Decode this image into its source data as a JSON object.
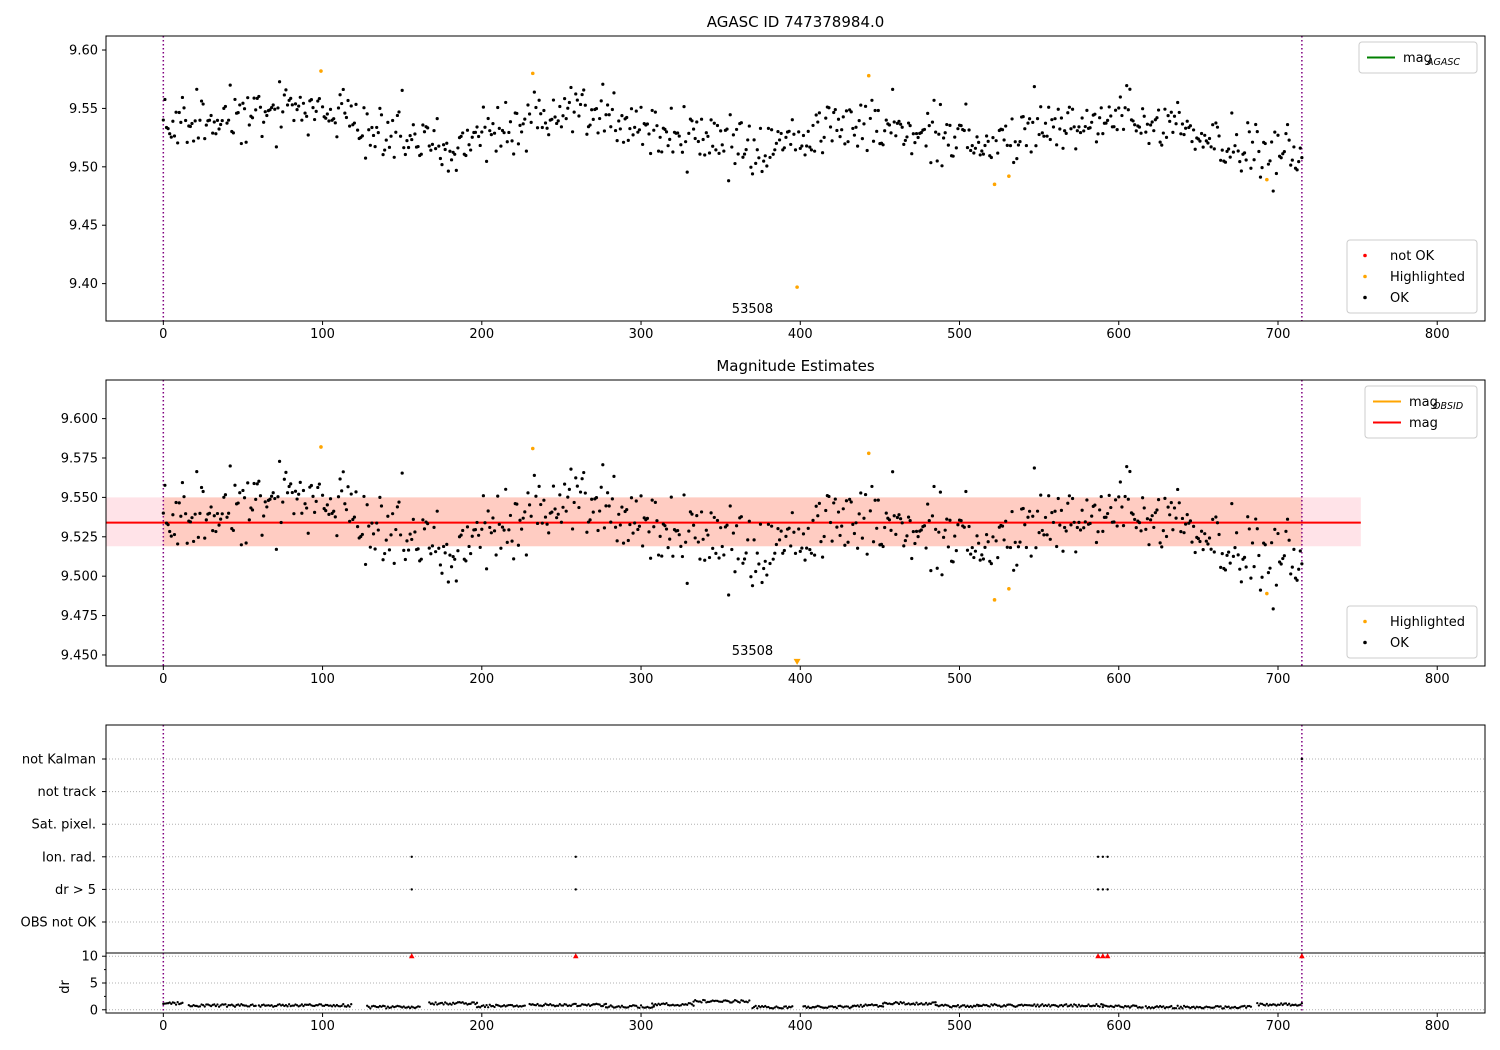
{
  "figure": {
    "background": "#ffffff"
  },
  "chart_data": [
    {
      "id": "top",
      "type": "scatter",
      "title": "AGASC ID 747378984.0",
      "xlabel": "",
      "ylabel": "",
      "xlim": [
        -36,
        830
      ],
      "ylim": [
        9.368,
        9.612
      ],
      "xticks": [
        "0",
        "100",
        "200",
        "300",
        "400",
        "500",
        "600",
        "700",
        "800"
      ],
      "xtick_values": [
        0,
        100,
        200,
        300,
        400,
        500,
        600,
        700,
        800
      ],
      "yticks": [
        "9.40",
        "9.45",
        "9.50",
        "9.55",
        "9.60"
      ],
      "ytick_values": [
        9.4,
        9.45,
        9.5,
        9.55,
        9.6
      ],
      "grid": false,
      "vlines": [
        0,
        715
      ],
      "vline_color": "#800080",
      "annotation": {
        "text": "53508",
        "x": 357,
        "y": 9.375
      },
      "legends": [
        {
          "placement": "top-right",
          "entries": [
            {
              "label": "mag",
              "sub": "AGASC",
              "kind": "line",
              "color": "#008000"
            }
          ]
        },
        {
          "placement": "bottom-right",
          "entries": [
            {
              "label": "not OK",
              "kind": "point",
              "color": "#ff0000"
            },
            {
              "label": "Highlighted",
              "kind": "point",
              "color": "#ffa500"
            },
            {
              "label": "OK",
              "kind": "point",
              "color": "#000000"
            }
          ]
        }
      ],
      "series": [
        {
          "name": "OK",
          "kind": "ok-trend",
          "color": "#000000"
        },
        {
          "name": "Highlighted",
          "color": "#ffa500",
          "points": [
            [
              99,
              9.582
            ],
            [
              232,
              9.58
            ],
            [
              443,
              9.578
            ],
            [
              398,
              9.397
            ],
            [
              522,
              9.485
            ],
            [
              531,
              9.492
            ],
            [
              693,
              9.489
            ]
          ]
        }
      ]
    },
    {
      "id": "middle",
      "type": "scatter",
      "title": "Magnitude Estimates",
      "xlabel": "",
      "ylabel": "",
      "xlim": [
        -36,
        830
      ],
      "ylim": [
        9.443,
        9.6245
      ],
      "xticks": [
        "0",
        "100",
        "200",
        "300",
        "400",
        "500",
        "600",
        "700",
        "800"
      ],
      "xtick_values": [
        0,
        100,
        200,
        300,
        400,
        500,
        600,
        700,
        800
      ],
      "yticks": [
        "9.450",
        "9.475",
        "9.500",
        "9.525",
        "9.550",
        "9.575",
        "9.600"
      ],
      "ytick_values": [
        9.45,
        9.475,
        9.5,
        9.525,
        9.55,
        9.575,
        9.6
      ],
      "grid": false,
      "vlines": [
        0,
        715
      ],
      "vline_color": "#800080",
      "annotation": {
        "text": "53508",
        "x": 357,
        "y": 9.45
      },
      "mag": 9.534,
      "band_outer": {
        "x": [
          -36,
          752
        ],
        "y": [
          9.519,
          9.55
        ],
        "color": "#ffc0cb"
      },
      "band_inner": {
        "x": [
          0,
          715
        ],
        "y": [
          9.519,
          9.55
        ],
        "color": "#ffa07a"
      },
      "legends": [
        {
          "placement": "top-right",
          "entries": [
            {
              "label": "mag",
              "sub": "OBSID",
              "kind": "line",
              "color": "#ffa500"
            },
            {
              "label": "mag",
              "kind": "line",
              "color": "#ff0000"
            }
          ]
        },
        {
          "placement": "bottom-right",
          "entries": [
            {
              "label": "Highlighted",
              "kind": "point",
              "color": "#ffa500"
            },
            {
              "label": "OK",
              "kind": "point",
              "color": "#000000"
            }
          ]
        }
      ],
      "series": [
        {
          "name": "OK",
          "kind": "ok-trend",
          "color": "#000000"
        },
        {
          "name": "Highlighted",
          "color": "#ffa500",
          "points": [
            [
              99,
              9.582
            ],
            [
              232,
              9.581
            ],
            [
              443,
              9.578
            ],
            [
              522,
              9.485
            ],
            [
              531,
              9.492
            ],
            [
              693,
              9.489
            ]
          ]
        },
        {
          "name": "Highlighted (off-scale)",
          "color": "#ffa500",
          "marker": "triangle-down",
          "points": [
            [
              398,
              9.445
            ]
          ]
        }
      ]
    },
    {
      "id": "flags",
      "type": "scatter",
      "title": "",
      "xlim": [
        -36,
        830
      ],
      "categories": [
        "not Kalman",
        "not track",
        "Sat. pixel.",
        "Ion. rad.",
        "dr > 5",
        "OBS not OK"
      ],
      "grid": true,
      "vlines": [
        0,
        715
      ],
      "vline_color": "#800080",
      "series": [
        {
          "name": "Ion. rad.",
          "color": "#000000",
          "x": [
            156,
            259,
            587,
            590,
            593
          ]
        },
        {
          "name": "dr > 5",
          "color": "#000000",
          "x": [
            156,
            259,
            587,
            590,
            593
          ]
        },
        {
          "name": "not Kalman",
          "color": "#000000",
          "x": [
            715
          ]
        }
      ]
    },
    {
      "id": "dr",
      "type": "scatter",
      "title": "",
      "xlabel": "",
      "ylabel": "dr",
      "xlim": [
        -36,
        830
      ],
      "ylim": [
        -0.6,
        10.6
      ],
      "xticks": [
        "0",
        "100",
        "200",
        "300",
        "400",
        "500",
        "600",
        "700",
        "800"
      ],
      "xtick_values": [
        0,
        100,
        200,
        300,
        400,
        500,
        600,
        700,
        800
      ],
      "yticks": [
        "0",
        "5",
        "10"
      ],
      "ytick_values": [
        0,
        5,
        10
      ],
      "grid": true,
      "vlines": [
        0,
        715
      ],
      "vline_color": "#800080",
      "series": [
        {
          "name": "dr",
          "kind": "dr-trend",
          "color": "#000000",
          "segments": [
            [
              0,
              12,
              1.2
            ],
            [
              16,
              58,
              0.8
            ],
            [
              60,
              118,
              0.8
            ],
            [
              128,
              161,
              0.5
            ],
            [
              167,
              197,
              1.2
            ],
            [
              197,
              227,
              0.7
            ],
            [
              230,
              278,
              0.9
            ],
            [
              278,
              308,
              0.6
            ],
            [
              307,
              333,
              1.0
            ],
            [
              333,
              368,
              1.6
            ],
            [
              370,
              395,
              0.5
            ],
            [
              402,
              433,
              0.5
            ],
            [
              433,
              452,
              0.8
            ],
            [
              452,
              485,
              1.2
            ],
            [
              485,
              512,
              0.7
            ],
            [
              512,
              590,
              0.8
            ],
            [
              590,
              615,
              0.6
            ],
            [
              617,
              683,
              0.5
            ],
            [
              687,
              715,
              1.0
            ]
          ]
        },
        {
          "name": "dr clipped",
          "color": "#ff0000",
          "marker": "triangle-up",
          "x": [
            156,
            259,
            587,
            590,
            593,
            715
          ]
        }
      ]
    }
  ]
}
